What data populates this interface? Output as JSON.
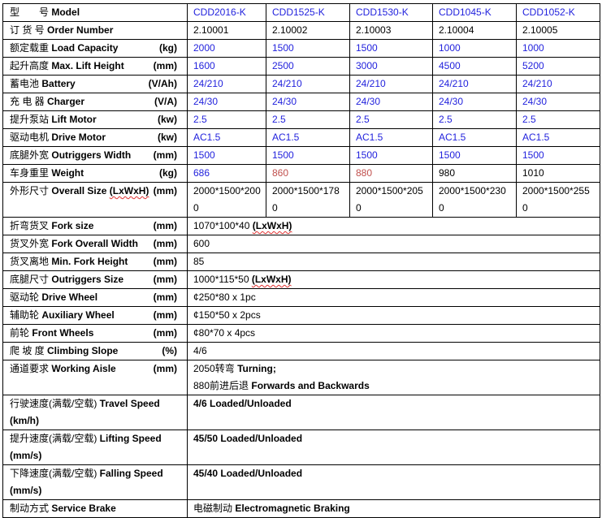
{
  "models": [
    "CDD2016-K",
    "CDD1525-K",
    "CDD1530-K",
    "CDD1045-K",
    "CDD1052-K"
  ],
  "colors": {
    "blue": "#2222dd",
    "red": "#c0504d",
    "black": "#000000"
  },
  "spec_rows": [
    {
      "cn": "型　　号",
      "en": "Model",
      "unit": "",
      "values": [
        "CDD2016-K",
        "CDD1525-K",
        "CDD1530-K",
        "CDD1045-K",
        "CDD1052-K"
      ],
      "colors": [
        "blue",
        "blue",
        "blue",
        "blue",
        "blue"
      ]
    },
    {
      "cn": "订 货 号",
      "en": "Order Number",
      "unit": "",
      "values": [
        "2.10001",
        "2.10002",
        "2.10003",
        "2.10004",
        "2.10005"
      ],
      "colors": [
        "black",
        "black",
        "black",
        "black",
        "black"
      ]
    },
    {
      "cn": "额定载重",
      "en": "Load Capacity",
      "unit": "(kg)",
      "values": [
        "2000",
        "1500",
        "1500",
        "1000",
        "1000"
      ],
      "colors": [
        "blue",
        "blue",
        "blue",
        "blue",
        "blue"
      ]
    },
    {
      "cn": "起升高度",
      "en": "Max. Lift Height",
      "unit": "(mm)",
      "values": [
        "1600",
        "2500",
        "3000",
        "4500",
        "5200"
      ],
      "colors": [
        "blue",
        "blue",
        "blue",
        "blue",
        "blue"
      ]
    },
    {
      "cn": "蓄电池",
      "en": "Battery",
      "unit": "(V/Ah)",
      "values": [
        "24/210",
        "24/210",
        "24/210",
        "24/210",
        "24/210"
      ],
      "colors": [
        "blue",
        "blue",
        "blue",
        "blue",
        "blue"
      ]
    },
    {
      "cn": "充 电 器",
      "en": "Charger",
      "unit": "(V/A)",
      "values": [
        "24/30",
        "24/30",
        "24/30",
        "24/30",
        "24/30"
      ],
      "colors": [
        "blue",
        "blue",
        "blue",
        "blue",
        "blue"
      ]
    },
    {
      "cn": "提升泵站",
      "en": "Lift Motor",
      "unit": "(kw)",
      "values": [
        "2.5",
        "2.5",
        "2.5",
        "2.5",
        "2.5"
      ],
      "colors": [
        "blue",
        "blue",
        "blue",
        "blue",
        "blue"
      ]
    },
    {
      "cn": "驱动电机",
      "en": "Drive Motor",
      "unit": "(kw)",
      "values": [
        "AC1.5",
        "AC1.5",
        "AC1.5",
        "AC1.5",
        "AC1.5"
      ],
      "colors": [
        "blue",
        "blue",
        "blue",
        "blue",
        "blue"
      ]
    },
    {
      "cn": "底腿外宽",
      "en": "Outriggers Width",
      "unit": "(mm)",
      "values": [
        "1500",
        "1500",
        "1500",
        "1500",
        "1500"
      ],
      "colors": [
        "blue",
        "blue",
        "blue",
        "blue",
        "blue"
      ]
    },
    {
      "cn": "车身重里",
      "en": "Weight",
      "unit": "(kg)",
      "values": [
        "686",
        "860",
        "880",
        "980",
        "1010"
      ],
      "colors": [
        "blue",
        "red",
        "red",
        "black",
        "black"
      ]
    },
    {
      "cn": "外形尺寸",
      "en": "Overall Size",
      "en_suffix": "(LxWxH)",
      "unit": "(mm)",
      "values": [
        "2000*1500*2000",
        "2000*1500*1780",
        "2000*1500*2050",
        "2000*1500*2300",
        "2000*1500*2550"
      ],
      "colors": [
        "black",
        "black",
        "black",
        "black",
        "black"
      ]
    }
  ],
  "common_rows": [
    {
      "cn": "折弯货叉",
      "en": "Fork size",
      "unit": "(mm)",
      "value": "1070*100*40",
      "value_suffix": "(LxWxH)"
    },
    {
      "cn": "货叉外宽",
      "en": "Fork Overall Width",
      "unit": "(mm)",
      "value": "600"
    },
    {
      "cn": "货叉离地",
      "en": "Min. Fork Height",
      "unit": "(mm)",
      "value": "85"
    },
    {
      "cn": "底腿尺寸",
      "en": "Outriggers Size",
      "unit": "(mm)",
      "value": "1000*115*50",
      "value_suffix": "(LxWxH)"
    },
    {
      "cn": "驱动轮",
      "en": "Drive Wheel",
      "unit": "(mm)",
      "value": "¢250*80 x 1pc"
    },
    {
      "cn": "辅助轮",
      "en": "Auxiliary Wheel",
      "unit": "(mm)",
      "value": "¢150*50 x 2pcs"
    },
    {
      "cn": "前轮",
      "en": "Front Wheels",
      "unit": "(mm)",
      "value": "¢80*70 x 4pcs"
    },
    {
      "cn": "爬 坡 度",
      "en": "Climbing Slope",
      "unit": "(%)",
      "value": "4/6"
    },
    {
      "cn": "通道要求",
      "en": "Working Aisle",
      "unit": "(mm)",
      "value_lines": [
        {
          "num": "2050",
          "cn": "转弯",
          "en": "Turning;"
        },
        {
          "num": "880",
          "cn": "前进后退",
          "en": "Forwards and Backwards"
        }
      ]
    },
    {
      "cn": "行驶速度(满载/空载)",
      "en": "Travel Speed",
      "unit2": "(km/h)",
      "value": "4/6 Loaded/Unloaded"
    },
    {
      "cn": "提升速度(满载/空载)",
      "en": "Lifting Speed",
      "unit2": "(mm/s)",
      "value": "45/50 Loaded/Unloaded"
    },
    {
      "cn": "下降速度(满载/空载)",
      "en": "Falling Speed",
      "unit2": "(mm/s)",
      "value": "45/40 Loaded/Unloaded"
    },
    {
      "cn": "制动方式",
      "en": "Service Brake",
      "value_cn": "电磁制动",
      "value": "Electromagnetic Braking"
    }
  ]
}
